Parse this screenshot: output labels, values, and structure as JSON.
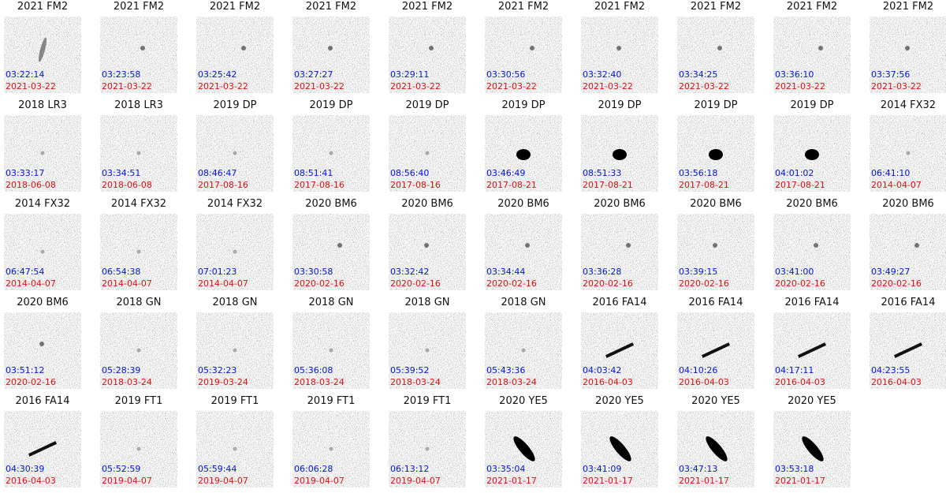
{
  "panels": [
    {
      "title": "2021 FM2",
      "time": "03:22:14",
      "date": "2021-03-22"
    },
    {
      "title": "2021 FM2",
      "time": "03:23:58",
      "date": "2021-03-22"
    },
    {
      "title": "2021 FM2",
      "time": "03:25:42",
      "date": "2021-03-22"
    },
    {
      "title": "2021 FM2",
      "time": "03:27:27",
      "date": "2021-03-22"
    },
    {
      "title": "2021 FM2",
      "time": "03:29:11",
      "date": "2021-03-22"
    },
    {
      "title": "2021 FM2",
      "time": "03:30:56",
      "date": "2021-03-22"
    },
    {
      "title": "2021 FM2",
      "time": "03:32:40",
      "date": "2021-03-22"
    },
    {
      "title": "2021 FM2",
      "time": "03:34:25",
      "date": "2021-03-22"
    },
    {
      "title": "2021 FM2",
      "time": "03:36:10",
      "date": "2021-03-22"
    },
    {
      "title": "2021 FM2",
      "time": "03:37:56",
      "date": "2021-03-22"
    },
    {
      "title": "2018 LR3",
      "time": "03:33:17",
      "date": "2018-06-08"
    },
    {
      "title": "2018 LR3",
      "time": "03:34:51",
      "date": "2018-06-08"
    },
    {
      "title": "2019 DP",
      "time": "08:46:47",
      "date": "2017-08-16"
    },
    {
      "title": "2019 DP",
      "time": "08:51:41",
      "date": "2017-08-16"
    },
    {
      "title": "2019 DP",
      "time": "08:56:40",
      "date": "2017-08-16"
    },
    {
      "title": "2019 DP",
      "time": "03:46:49",
      "date": "2017-08-21"
    },
    {
      "title": "2019 DP",
      "time": "08:51:33",
      "date": "2017-08-21"
    },
    {
      "title": "2019 DP",
      "time": "03:56:18",
      "date": "2017-08-21"
    },
    {
      "title": "2019 DP",
      "time": "04:01:02",
      "date": "2017-08-21"
    },
    {
      "title": "2014 FX32",
      "time": "06:41:10",
      "date": "2014-04-07"
    },
    {
      "title": "2014 FX32",
      "time": "06:47:54",
      "date": "2014-04-07"
    },
    {
      "title": "2014 FX32",
      "time": "06:54:38",
      "date": "2014-04-07"
    },
    {
      "title": "2014 FX32",
      "time": "07:01:23",
      "date": "2014-04-07"
    },
    {
      "title": "2020 BM6",
      "time": "03:30:58",
      "date": "2020-02-16"
    },
    {
      "title": "2020 BM6",
      "time": "03:32:42",
      "date": "2020-02-16"
    },
    {
      "title": "2020 BM6",
      "time": "03:34:44",
      "date": "2020-02-16"
    },
    {
      "title": "2020 BM6",
      "time": "03:36:28",
      "date": "2020-02-16"
    },
    {
      "title": "2020 BM6",
      "time": "03:39:15",
      "date": "2020-02-16"
    },
    {
      "title": "2020 BM6",
      "time": "03:41:00",
      "date": "2020-02-16"
    },
    {
      "title": "2020 BM6",
      "time": "03:49:27",
      "date": "2020-02-16"
    },
    {
      "title": "2020 BM6",
      "time": "03:51:12",
      "date": "2020-02-16"
    },
    {
      "title": "2018 GN",
      "time": "05:28:39",
      "date": "2018-03-24"
    },
    {
      "title": "2018 GN",
      "time": "05:32:23",
      "date": "2019-03-24"
    },
    {
      "title": "2018 GN",
      "time": "05:36:08",
      "date": "2018-03-24"
    },
    {
      "title": "2018 GN",
      "time": "05:39:52",
      "date": "2018-03-24"
    },
    {
      "title": "2018 GN",
      "time": "05:43:36",
      "date": "2018-03-24"
    },
    {
      "title": "2016 FA14",
      "time": "04:03:42",
      "date": "2016-04-03"
    },
    {
      "title": "2016 FA14",
      "time": "04:10:26",
      "date": "2016-04-03"
    },
    {
      "title": "2016 FA14",
      "time": "04:17:11",
      "date": "2016-04-03"
    },
    {
      "title": "2016 FA14",
      "time": "04:23:55",
      "date": "2016-04-03"
    },
    {
      "title": "2016 FA14",
      "time": "04:30:39",
      "date": "2016-04-03"
    },
    {
      "title": "2019 FT1",
      "time": "05:52:59",
      "date": "2019-04-07"
    },
    {
      "title": "2019 FT1",
      "time": "05:59:44",
      "date": "2019-04-07"
    },
    {
      "title": "2019 FT1",
      "time": "06:06:28",
      "date": "2019-04-07"
    },
    {
      "title": "2019 FT1",
      "time": "06:13:12",
      "date": "2019-04-07"
    },
    {
      "title": "2020 YE5",
      "time": "03:35:04",
      "date": "2021-01-17"
    },
    {
      "title": "2020 YE5",
      "time": "03:41:09",
      "date": "2021-01-17"
    },
    {
      "title": "2020 YE5",
      "time": "03:47:13",
      "date": "2021-01-17"
    },
    {
      "title": "2020 YE5",
      "time": "03:53:18",
      "date": "2021-01-17"
    }
  ]
}
